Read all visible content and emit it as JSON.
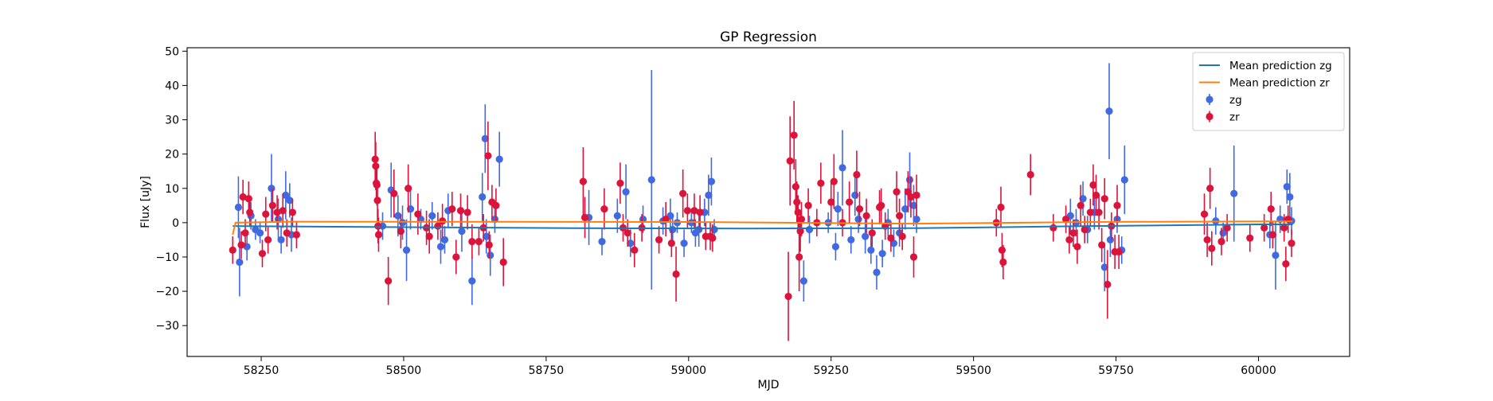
{
  "chart_data": {
    "type": "scatter",
    "title": "GP Regression",
    "xlabel": "MJD",
    "ylabel": "Flux [uJy]",
    "xlim": [
      58120,
      60160
    ],
    "ylim": [
      -39,
      51
    ],
    "xticks": [
      58250,
      58500,
      58750,
      59000,
      59250,
      59500,
      59750,
      60000
    ],
    "yticks": [
      -30,
      -20,
      -10,
      0,
      10,
      20,
      30,
      40,
      50
    ],
    "grid": false,
    "legend_position": "top-right",
    "legend": [
      {
        "label": "Mean prediction zg",
        "kind": "line",
        "color": "#1f77b4"
      },
      {
        "label": "Mean prediction zr",
        "kind": "line",
        "color": "#ff7f0e"
      },
      {
        "label": "zg",
        "kind": "errorbar",
        "color": "#4169e1"
      },
      {
        "label": "zr",
        "kind": "errorbar",
        "color": "#dc143c"
      }
    ],
    "lines": [
      {
        "name": "Mean prediction zg",
        "color": "#1f77b4",
        "points": [
          [
            58200,
            -1.0
          ],
          [
            58500,
            -1.3
          ],
          [
            58800,
            -1.6
          ],
          [
            59100,
            -1.7
          ],
          [
            59400,
            -1.6
          ],
          [
            59700,
            -1.0
          ],
          [
            60000,
            -0.5
          ],
          [
            60060,
            -0.5
          ]
        ]
      },
      {
        "name": "Mean prediction zr",
        "color": "#ff7f0e",
        "points": [
          [
            58200,
            -3.5
          ],
          [
            58205,
            0
          ],
          [
            58300,
            0.3
          ],
          [
            59000,
            0.2
          ],
          [
            59400,
            -0.3
          ],
          [
            59700,
            0.2
          ],
          [
            60060,
            0.4
          ]
        ]
      }
    ],
    "series": [
      {
        "name": "zg",
        "color": "#4169e1",
        "points": [
          [
            58210,
            4.5,
            9
          ],
          [
            58212,
            -11.5,
            10
          ],
          [
            58225,
            -7,
            4
          ],
          [
            58232,
            2,
            4
          ],
          [
            58240,
            -2,
            3
          ],
          [
            58248,
            -3,
            3
          ],
          [
            58268,
            10,
            10
          ],
          [
            58280,
            1,
            6
          ],
          [
            58285,
            -5,
            4
          ],
          [
            58293,
            8,
            7
          ],
          [
            58300,
            6.5,
            5
          ],
          [
            58303,
            -3.5,
            5
          ],
          [
            58463,
            -1,
            4
          ],
          [
            58478,
            9.5,
            8
          ],
          [
            58490,
            2,
            6
          ],
          [
            58498,
            0,
            5
          ],
          [
            58505,
            -8,
            9
          ],
          [
            58512,
            4,
            6
          ],
          [
            58530,
            1,
            3
          ],
          [
            58550,
            2,
            4
          ],
          [
            58565,
            -7,
            5
          ],
          [
            58572,
            -5,
            4
          ],
          [
            58578,
            3.5,
            5
          ],
          [
            58602,
            -2.5,
            6
          ],
          [
            58620,
            -17,
            7
          ],
          [
            58638,
            7.5,
            7
          ],
          [
            58643,
            24.5,
            10
          ],
          [
            58645,
            -4,
            5
          ],
          [
            58652,
            -9.5,
            6
          ],
          [
            58660,
            1,
            4
          ],
          [
            58668,
            18.5,
            8
          ],
          [
            58825,
            1.5,
            8
          ],
          [
            58848,
            -5.5,
            4
          ],
          [
            58875,
            2,
            5
          ],
          [
            58890,
            9,
            8
          ],
          [
            58898,
            -6,
            4
          ],
          [
            58920,
            1,
            4
          ],
          [
            58935,
            12.5,
            32
          ],
          [
            58955,
            0.5,
            4
          ],
          [
            58968,
            2,
            5
          ],
          [
            58972,
            -2,
            4
          ],
          [
            58980,
            0,
            3
          ],
          [
            58992,
            -6,
            4
          ],
          [
            59005,
            0,
            3
          ],
          [
            59012,
            -3,
            4
          ],
          [
            59018,
            -2,
            5
          ],
          [
            59028,
            3,
            4
          ],
          [
            59035,
            8,
            6
          ],
          [
            59040,
            12,
            7
          ],
          [
            59045,
            -2,
            3
          ],
          [
            59202,
            -17,
            6
          ],
          [
            59212,
            -2,
            4
          ],
          [
            59245,
            0,
            3
          ],
          [
            59258,
            -7,
            4
          ],
          [
            59262,
            4,
            5
          ],
          [
            59270,
            16,
            11
          ],
          [
            59285,
            -5,
            4
          ],
          [
            59292,
            8,
            6
          ],
          [
            59298,
            1,
            4
          ],
          [
            59310,
            -4,
            5
          ],
          [
            59320,
            -8,
            4
          ],
          [
            59330,
            -14.5,
            5
          ],
          [
            59340,
            -9,
            4
          ],
          [
            59350,
            0,
            4
          ],
          [
            59360,
            -6,
            4
          ],
          [
            59370,
            -3,
            4
          ],
          [
            59380,
            4,
            6
          ],
          [
            59388,
            12.5,
            8
          ],
          [
            59395,
            5,
            6
          ],
          [
            59400,
            1,
            4
          ],
          [
            59670,
            2,
            5
          ],
          [
            59680,
            0,
            4
          ],
          [
            59692,
            7,
            5
          ],
          [
            59700,
            -2,
            4
          ],
          [
            59712,
            3,
            5
          ],
          [
            59730,
            -13,
            7
          ],
          [
            59738,
            32.5,
            14
          ],
          [
            59740,
            -5,
            5
          ],
          [
            59752,
            1,
            4
          ],
          [
            59760,
            -8,
            4
          ],
          [
            59765,
            12.5,
            10
          ],
          [
            59925,
            0.5,
            4
          ],
          [
            59938,
            -3,
            3
          ],
          [
            59957,
            8.5,
            14
          ],
          [
            60020,
            -3.5,
            4
          ],
          [
            60030,
            -9.5,
            10
          ],
          [
            60038,
            1,
            4
          ],
          [
            60050,
            10.5,
            5
          ],
          [
            60055,
            7.5,
            7
          ],
          [
            60058,
            0.5,
            4
          ]
        ]
      },
      {
        "name": "zr",
        "color": "#dc143c",
        "points": [
          [
            58200,
            -8,
            4
          ],
          [
            58215,
            -6.5,
            4
          ],
          [
            58218,
            7.5,
            5
          ],
          [
            58222,
            -3,
            4
          ],
          [
            58228,
            7,
            5
          ],
          [
            58230,
            3,
            4
          ],
          [
            58252,
            -9,
            4
          ],
          [
            58258,
            2.5,
            5
          ],
          [
            58262,
            -5,
            4
          ],
          [
            58270,
            5,
            5
          ],
          [
            58278,
            3,
            5
          ],
          [
            58288,
            3.5,
            5
          ],
          [
            58295,
            -3,
            4
          ],
          [
            58305,
            3,
            4
          ],
          [
            58312,
            -3.5,
            4
          ],
          [
            58450,
            18.5,
            8
          ],
          [
            58451,
            16.5,
            7
          ],
          [
            58452,
            11.5,
            6
          ],
          [
            58453,
            11,
            6
          ],
          [
            58454,
            6.5,
            6
          ],
          [
            58455,
            -1,
            5
          ],
          [
            58456,
            -3.5,
            5
          ],
          [
            58473,
            -17,
            7
          ],
          [
            58483,
            8.5,
            7
          ],
          [
            58495,
            -2.5,
            5
          ],
          [
            58508,
            10,
            7
          ],
          [
            58525,
            2.5,
            6
          ],
          [
            58540,
            -1.5,
            5
          ],
          [
            58545,
            -4,
            5
          ],
          [
            58560,
            -1,
            4
          ],
          [
            58568,
            0.5,
            5
          ],
          [
            58585,
            4,
            5
          ],
          [
            58592,
            -10,
            5
          ],
          [
            58600,
            3.5,
            5
          ],
          [
            58612,
            3,
            5
          ],
          [
            58620,
            -5.5,
            5
          ],
          [
            58632,
            -5.5,
            4
          ],
          [
            58640,
            -1.5,
            4
          ],
          [
            58648,
            19.5,
            10
          ],
          [
            58650,
            -6.5,
            4
          ],
          [
            58655,
            6,
            5
          ],
          [
            58662,
            5,
            5
          ],
          [
            58675,
            -11.5,
            7
          ],
          [
            58815,
            12,
            10
          ],
          [
            58818,
            1.5,
            6
          ],
          [
            58852,
            4,
            6
          ],
          [
            58880,
            11.5,
            6
          ],
          [
            58885,
            -1.5,
            4
          ],
          [
            58893,
            -3,
            4
          ],
          [
            58905,
            -8,
            5
          ],
          [
            58918,
            -1.5,
            4
          ],
          [
            58948,
            -5,
            4
          ],
          [
            58960,
            1,
            5
          ],
          [
            58970,
            -6,
            4
          ],
          [
            58978,
            -15,
            8
          ],
          [
            58990,
            8.5,
            7
          ],
          [
            58998,
            3.5,
            5
          ],
          [
            59010,
            3.5,
            5
          ],
          [
            59020,
            3,
            5
          ],
          [
            59030,
            -4,
            4
          ],
          [
            59038,
            -4,
            4
          ],
          [
            59042,
            -4.5,
            4
          ],
          [
            59175,
            -21.5,
            13
          ],
          [
            59178,
            18,
            13
          ],
          [
            59185,
            25.5,
            10
          ],
          [
            59188,
            10.5,
            8
          ],
          [
            59190,
            6,
            6
          ],
          [
            59192,
            3,
            5
          ],
          [
            59194,
            -10,
            10
          ],
          [
            59196,
            -2.5,
            6
          ],
          [
            59198,
            1,
            5
          ],
          [
            59210,
            5,
            5
          ],
          [
            59225,
            0,
            4
          ],
          [
            59232,
            11.5,
            6
          ],
          [
            59250,
            6,
            6
          ],
          [
            59255,
            12,
            8
          ],
          [
            59270,
            0,
            4
          ],
          [
            59282,
            6,
            6
          ],
          [
            59295,
            14,
            7
          ],
          [
            59300,
            4,
            5
          ],
          [
            59312,
            2,
            5
          ],
          [
            59322,
            -3,
            4
          ],
          [
            59335,
            4.5,
            5
          ],
          [
            59338,
            5,
            5
          ],
          [
            59345,
            -1,
            4
          ],
          [
            59355,
            -4.5,
            4
          ],
          [
            59365,
            9,
            6
          ],
          [
            59370,
            2,
            5
          ],
          [
            59375,
            -4,
            4
          ],
          [
            59385,
            9,
            6
          ],
          [
            59390,
            7.5,
            6
          ],
          [
            59395,
            -10,
            6
          ],
          [
            59400,
            8,
            6
          ],
          [
            59540,
            0,
            4
          ],
          [
            59548,
            4.5,
            6
          ],
          [
            59550,
            -8,
            5
          ],
          [
            59552,
            -11.5,
            5
          ],
          [
            59600,
            14,
            6
          ],
          [
            59640,
            -1.5,
            4
          ],
          [
            59662,
            1,
            4
          ],
          [
            59668,
            -5,
            4
          ],
          [
            59675,
            -3,
            4
          ],
          [
            59682,
            -7,
            5
          ],
          [
            59688,
            5,
            6
          ],
          [
            59695,
            -2,
            4
          ],
          [
            59705,
            3,
            4
          ],
          [
            59710,
            11,
            6
          ],
          [
            59715,
            8,
            6
          ],
          [
            59720,
            3,
            5
          ],
          [
            59725,
            -6.5,
            5
          ],
          [
            59730,
            7,
            6
          ],
          [
            59735,
            -18,
            10
          ],
          [
            59742,
            -1,
            4
          ],
          [
            59748,
            -8.5,
            5
          ],
          [
            59752,
            5,
            6
          ],
          [
            59755,
            -8.5,
            5
          ],
          [
            59905,
            2.5,
            6
          ],
          [
            59910,
            -5,
            5
          ],
          [
            59915,
            10,
            6
          ],
          [
            59918,
            -7.5,
            5
          ],
          [
            59935,
            -5.5,
            4
          ],
          [
            59945,
            -1.5,
            4
          ],
          [
            59985,
            -4.5,
            4
          ],
          [
            60010,
            -1.5,
            4
          ],
          [
            60022,
            4,
            5
          ],
          [
            60025,
            -3.5,
            4
          ],
          [
            60045,
            -1.5,
            4
          ],
          [
            60048,
            -12,
            5
          ],
          [
            60052,
            1,
            4
          ],
          [
            60058,
            -6,
            4
          ]
        ]
      }
    ]
  }
}
